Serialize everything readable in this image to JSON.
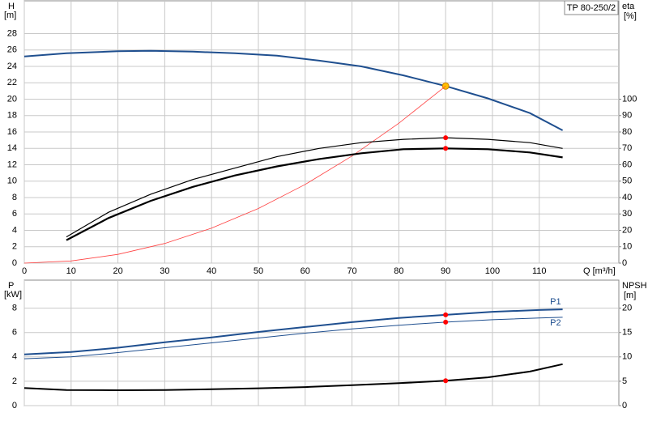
{
  "chart_data": [
    {
      "type": "line",
      "id_label": "TP 80-250/2",
      "y_label": "H",
      "y_unit": "[m]",
      "y2_label": "eta",
      "y2_unit": "[%]",
      "x_label": "Q [m³/h]",
      "xlim": [
        0,
        127
      ],
      "xticks": [
        0,
        10,
        20,
        30,
        40,
        50,
        60,
        70,
        80,
        90,
        100,
        110
      ],
      "ylim": [
        0,
        32
      ],
      "yticks": [
        0,
        2,
        4,
        6,
        8,
        10,
        12,
        14,
        16,
        18,
        20,
        22,
        24,
        26,
        28
      ],
      "y2lim": [
        0,
        160
      ],
      "y2ticks": [
        0,
        10,
        20,
        30,
        40,
        50,
        60,
        70,
        80,
        90,
        100
      ],
      "grid": true,
      "marker_x": 90,
      "series": [
        {
          "color": "#1f4f8f",
          "width": 2,
          "marker_color": "#ffc000",
          "x": [
            0,
            9,
            20,
            27,
            36,
            45,
            54,
            63,
            72,
            81,
            90,
            99,
            108,
            115
          ],
          "values": [
            25.2,
            25.6,
            25.85,
            25.9,
            25.8,
            25.6,
            25.3,
            24.7,
            24.0,
            22.9,
            21.6,
            20.1,
            18.3,
            16.2
          ]
        },
        {
          "color": "#ff4040",
          "width": 0.8,
          "x": [
            0,
            10,
            20,
            30,
            40,
            50,
            60,
            70,
            80,
            90
          ],
          "values": [
            0,
            0.27,
            1.07,
            2.4,
            4.27,
            6.67,
            9.6,
            13.07,
            17.07,
            21.6
          ]
        },
        {
          "color": "#000000",
          "width": 1.2,
          "axis": "y2",
          "marker_color": "#ff0000",
          "x": [
            9,
            18,
            27,
            36,
            45,
            54,
            63,
            72,
            81,
            90,
            99,
            108,
            115
          ],
          "values": [
            16,
            31,
            42,
            51,
            58,
            65,
            70,
            73.5,
            75.5,
            76.5,
            75.5,
            73.5,
            70
          ]
        },
        {
          "color": "#000000",
          "width": 2.2,
          "axis": "y2",
          "marker_color": "#ff0000",
          "x": [
            9,
            18,
            27,
            36,
            45,
            54,
            63,
            72,
            81,
            90,
            99,
            108,
            115
          ],
          "values": [
            14,
            27.5,
            38,
            46.5,
            53.5,
            59,
            63.5,
            67,
            69.5,
            70,
            69.5,
            67.5,
            64.5
          ]
        }
      ]
    },
    {
      "type": "line",
      "y_label": "P",
      "y_unit": "[kW]",
      "y2_label": "NPSH",
      "y2_unit": "[m]",
      "xlim": [
        0,
        127
      ],
      "xticks": [
        0,
        10,
        20,
        30,
        40,
        50,
        60,
        70,
        80,
        90,
        100,
        110
      ],
      "ylim": [
        0,
        10.3
      ],
      "yticks": [
        0,
        2,
        4,
        6,
        8
      ],
      "y2lim": [
        0,
        25.75
      ],
      "y2ticks": [
        0,
        5,
        10,
        15,
        20
      ],
      "grid": true,
      "marker_x": 90,
      "series": [
        {
          "name": "P1",
          "color": "#1f4f8f",
          "width": 2,
          "marker_color": "#ff0000",
          "x": [
            0,
            10,
            20,
            30,
            40,
            50,
            60,
            70,
            80,
            90,
            100,
            110,
            115
          ],
          "values": [
            4.2,
            4.4,
            4.75,
            5.2,
            5.6,
            6.05,
            6.45,
            6.85,
            7.2,
            7.45,
            7.7,
            7.85,
            7.9
          ]
        },
        {
          "name": "P2",
          "color": "#1f4f8f",
          "width": 1,
          "marker_color": "#ff0000",
          "x": [
            0,
            10,
            20,
            30,
            40,
            50,
            60,
            70,
            80,
            90,
            100,
            110,
            115
          ],
          "values": [
            3.85,
            4.0,
            4.35,
            4.75,
            5.15,
            5.55,
            5.95,
            6.3,
            6.6,
            6.85,
            7.05,
            7.2,
            7.25
          ]
        },
        {
          "color": "#000000",
          "width": 2,
          "axis": "y2",
          "marker_color": "#ff0000",
          "x": [
            0,
            9,
            20,
            30,
            40,
            50,
            60,
            70,
            80,
            90,
            99,
            108,
            115
          ],
          "values": [
            3.6,
            3.2,
            3.15,
            3.2,
            3.35,
            3.55,
            3.8,
            4.2,
            4.6,
            5.1,
            5.8,
            7.0,
            8.5
          ]
        }
      ]
    }
  ]
}
